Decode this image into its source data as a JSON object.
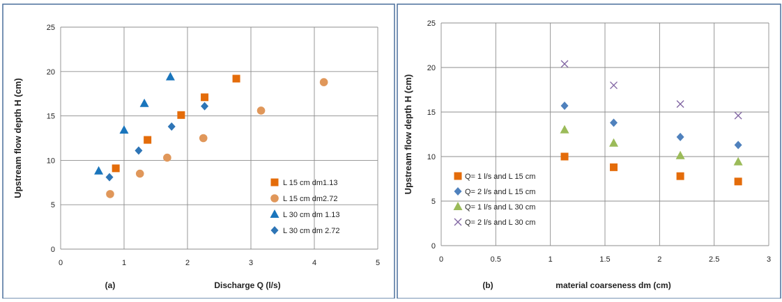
{
  "chart_data": [
    {
      "type": "scatter",
      "panel_label": "(a)",
      "xlabel": "Discharge   Q (l/s)",
      "ylabel": "Upstream flow depth    H (cm)",
      "xlim": [
        0,
        5
      ],
      "ylim": [
        0,
        25
      ],
      "x_ticks": [
        "0",
        "1",
        "2",
        "3",
        "4",
        "5"
      ],
      "y_ticks": [
        "0",
        "5",
        "10",
        "15",
        "20",
        "25"
      ],
      "grid": true,
      "legend_position": "bottom-right",
      "series": [
        {
          "name": "L 15 cm     dm1.13",
          "marker": "square",
          "color": "#E46C0A",
          "x": [
            0.87,
            1.37,
            1.9,
            2.27,
            2.77
          ],
          "y": [
            9.1,
            12.3,
            15.1,
            17.1,
            19.2
          ]
        },
        {
          "name": "L 15 cm     dm2.72",
          "marker": "circle",
          "color": "#E0975A",
          "x": [
            0.78,
            1.25,
            1.68,
            2.25,
            3.16,
            4.15
          ],
          "y": [
            6.2,
            8.5,
            10.3,
            12.5,
            15.6,
            18.8
          ]
        },
        {
          "name": "L 30 cm    dm 1.13",
          "marker": "triangle",
          "color": "#1A75BC",
          "x": [
            0.6,
            1.0,
            1.32,
            1.73
          ],
          "y": [
            8.8,
            13.4,
            16.4,
            19.4
          ]
        },
        {
          "name": "L 30 cm    dm 2.72",
          "marker": "diamond",
          "color": "#2E75B6",
          "x": [
            0.77,
            1.23,
            1.75,
            2.27
          ],
          "y": [
            8.1,
            11.1,
            13.8,
            16.1
          ]
        }
      ]
    },
    {
      "type": "scatter",
      "panel_label": "(b)",
      "xlabel": "material coarseness  dm (cm)",
      "ylabel": "Upstream flow depth    H (cm)",
      "xlim": [
        0,
        3
      ],
      "ylim": [
        0,
        25
      ],
      "x_ticks": [
        "0",
        "0.5",
        "1",
        "1.5",
        "2",
        "2.5",
        "3"
      ],
      "y_ticks": [
        "0",
        "5",
        "10",
        "15",
        "20",
        "25"
      ],
      "grid": true,
      "legend_position": "bottom-left",
      "series": [
        {
          "name": "Q= 1 l/s   and L 15 cm",
          "marker": "square",
          "color": "#E46C0A",
          "x": [
            1.13,
            1.58,
            2.19,
            2.72
          ],
          "y": [
            10.0,
            8.8,
            7.8,
            7.2
          ]
        },
        {
          "name": "Q= 2 l/s   and L 15 cm",
          "marker": "diamond",
          "color": "#4F81BD",
          "x": [
            1.13,
            1.58,
            2.19,
            2.72
          ],
          "y": [
            15.7,
            13.8,
            12.2,
            11.3
          ]
        },
        {
          "name": "Q= 1 l/s   and L 30 cm",
          "marker": "triangle",
          "color": "#9BBB59",
          "x": [
            1.13,
            1.58,
            2.19,
            2.72
          ],
          "y": [
            13.0,
            11.5,
            10.1,
            9.4
          ]
        },
        {
          "name": "Q= 2 l/s   and L 30 cm",
          "marker": "x",
          "color": "#8064A2",
          "x": [
            1.13,
            1.58,
            2.19,
            2.72
          ],
          "y": [
            20.4,
            18.0,
            15.9,
            14.6
          ]
        }
      ]
    }
  ]
}
